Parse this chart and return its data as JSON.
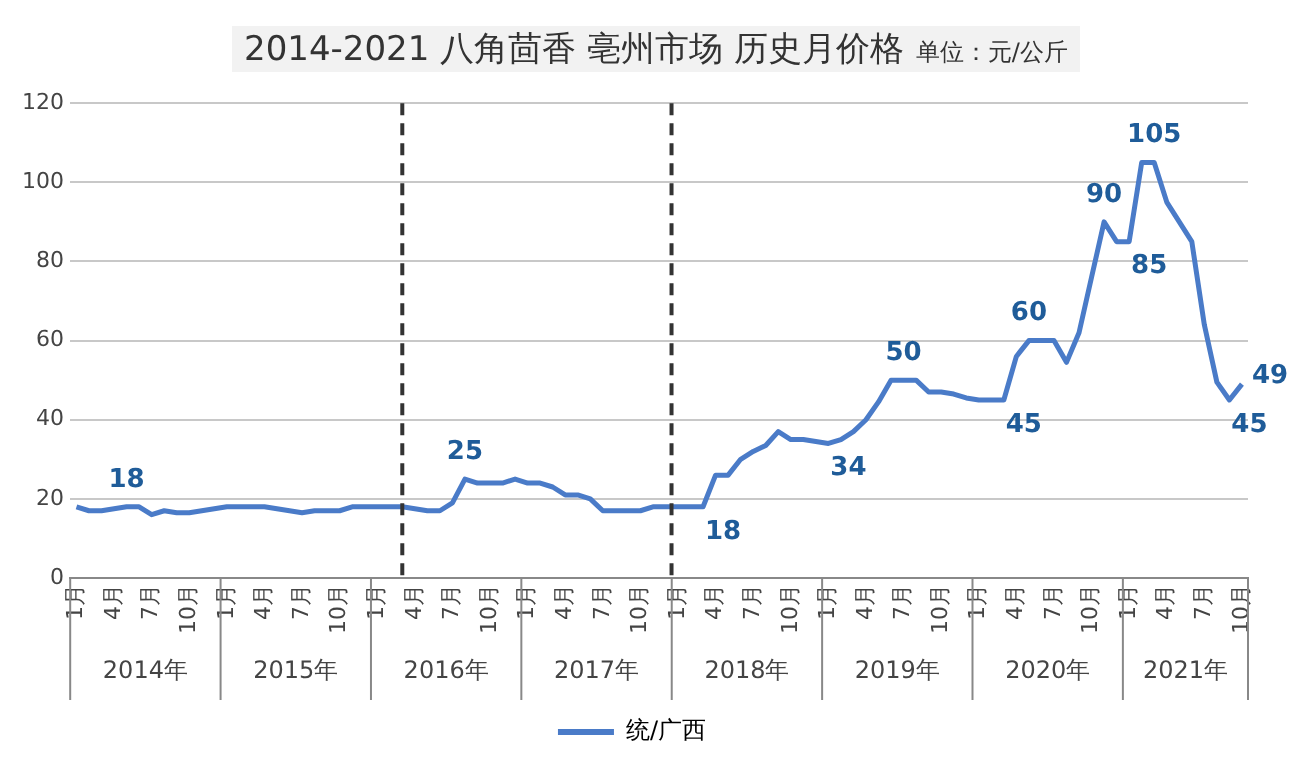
{
  "chart_data": {
    "type": "line",
    "title": "2014-2021 八角茴香 亳州市场 历史月价格",
    "subtitle": "单位：元/公斤",
    "x": [
      "2014-01",
      "2014-02",
      "2014-03",
      "2014-04",
      "2014-05",
      "2014-06",
      "2014-07",
      "2014-08",
      "2014-09",
      "2014-10",
      "2014-11",
      "2014-12",
      "2015-01",
      "2015-02",
      "2015-03",
      "2015-04",
      "2015-05",
      "2015-06",
      "2015-07",
      "2015-08",
      "2015-09",
      "2015-10",
      "2015-11",
      "2015-12",
      "2016-01",
      "2016-02",
      "2016-03",
      "2016-04",
      "2016-05",
      "2016-06",
      "2016-07",
      "2016-08",
      "2016-09",
      "2016-10",
      "2016-11",
      "2016-12",
      "2017-01",
      "2017-02",
      "2017-03",
      "2017-04",
      "2017-05",
      "2017-06",
      "2017-07",
      "2017-08",
      "2017-09",
      "2017-10",
      "2017-11",
      "2017-12",
      "2018-01",
      "2018-02",
      "2018-03",
      "2018-04",
      "2018-05",
      "2018-06",
      "2018-07",
      "2018-08",
      "2018-09",
      "2018-10",
      "2018-11",
      "2018-12",
      "2019-01",
      "2019-02",
      "2019-03",
      "2019-04",
      "2019-05",
      "2019-06",
      "2019-07",
      "2019-08",
      "2019-09",
      "2019-10",
      "2019-11",
      "2019-12",
      "2020-01",
      "2020-02",
      "2020-03",
      "2020-04",
      "2020-05",
      "2020-06",
      "2020-07",
      "2020-08",
      "2020-09",
      "2020-10",
      "2020-11",
      "2020-12",
      "2021-01",
      "2021-02",
      "2021-03",
      "2021-04",
      "2021-05",
      "2021-06",
      "2021-07",
      "2021-08",
      "2021-09",
      "2021-10"
    ],
    "series": [
      {
        "name": "统/广西",
        "color": "#4a7bc8",
        "values": [
          18,
          17,
          17,
          17.5,
          18,
          18,
          16,
          17,
          16.5,
          16.5,
          17,
          17.5,
          18,
          18,
          18,
          18,
          17.5,
          17,
          16.5,
          17,
          17,
          17,
          18,
          18,
          18,
          18,
          18,
          17.5,
          17,
          17,
          19,
          25,
          24,
          24,
          24,
          25,
          24,
          24,
          23,
          21,
          21,
          20,
          17,
          17,
          17,
          17,
          18,
          18,
          18,
          18,
          18,
          26,
          26,
          30,
          32,
          33.5,
          37,
          35,
          35,
          34.5,
          34,
          35,
          37,
          40,
          44.5,
          50,
          50,
          50,
          47,
          47,
          46.5,
          45.5,
          45,
          45,
          45,
          56,
          60,
          60,
          60,
          54.5,
          62,
          76,
          90,
          85,
          85,
          105,
          105,
          95,
          90,
          85,
          64,
          49.5,
          45,
          49
        ],
        "value_labels": [
          null,
          null,
          null,
          null,
          "18",
          null,
          null,
          null,
          null,
          null,
          null,
          null,
          null,
          null,
          null,
          null,
          null,
          null,
          null,
          null,
          null,
          null,
          null,
          null,
          null,
          null,
          null,
          null,
          null,
          null,
          null,
          "25",
          null,
          null,
          null,
          null,
          null,
          null,
          null,
          null,
          null,
          null,
          null,
          null,
          null,
          null,
          null,
          null,
          null,
          null,
          "18",
          null,
          null,
          null,
          null,
          null,
          null,
          null,
          null,
          null,
          "34",
          null,
          null,
          null,
          null,
          null,
          "50",
          null,
          null,
          null,
          null,
          null,
          null,
          null,
          "45",
          null,
          "60",
          null,
          null,
          null,
          null,
          null,
          "90",
          null,
          "85",
          null,
          "105",
          null,
          null,
          null,
          null,
          null,
          "45",
          "49"
        ]
      }
    ],
    "xlim": [
      "2013-12-16",
      "2021-10-16"
    ],
    "xticks": [
      {
        "value": "2014-01",
        "label": "1月"
      },
      {
        "value": "2014-04",
        "label": "4月"
      },
      {
        "value": "2014-07",
        "label": "7月"
      },
      {
        "value": "2014-10",
        "label": "10月"
      },
      {
        "value": "2015-01",
        "label": "1月"
      },
      {
        "value": "2015-04",
        "label": "4月"
      },
      {
        "value": "2015-07",
        "label": "7月"
      },
      {
        "value": "2015-10",
        "label": "10月"
      },
      {
        "value": "2016-01",
        "label": "1月"
      },
      {
        "value": "2016-04",
        "label": "4月"
      },
      {
        "value": "2016-07",
        "label": "7月"
      },
      {
        "value": "2016-10",
        "label": "10月"
      },
      {
        "value": "2017-01",
        "label": "1月"
      },
      {
        "value": "2017-04",
        "label": "4月"
      },
      {
        "value": "2017-07",
        "label": "7月"
      },
      {
        "value": "2017-10",
        "label": "10月"
      },
      {
        "value": "2018-01",
        "label": "1月"
      },
      {
        "value": "2018-04",
        "label": "4月"
      },
      {
        "value": "2018-07",
        "label": "7月"
      },
      {
        "value": "2018-10",
        "label": "10月"
      },
      {
        "value": "2019-01",
        "label": "1月"
      },
      {
        "value": "2019-04",
        "label": "4月"
      },
      {
        "value": "2019-07",
        "label": "7月"
      },
      {
        "value": "2019-10",
        "label": "10月"
      },
      {
        "value": "2020-01",
        "label": "1月"
      },
      {
        "value": "2020-04",
        "label": "4月"
      },
      {
        "value": "2020-07",
        "label": "7月"
      },
      {
        "value": "2020-10",
        "label": "10月"
      },
      {
        "value": "2021-01",
        "label": "1月"
      },
      {
        "value": "2021-04",
        "label": "4月"
      },
      {
        "value": "2021-07",
        "label": "7月"
      },
      {
        "value": "2021-10",
        "label": "10月"
      }
    ],
    "ylim": [
      0,
      120
    ],
    "yticks": [
      0,
      20,
      40,
      60,
      80,
      100,
      120
    ],
    "ref_lines": [
      {
        "axis": "x",
        "value": "2016-03",
        "line_style": "dashed",
        "color": "#333333"
      },
      {
        "axis": "x",
        "value": "2017-12-16",
        "line_style": "dashed",
        "color": "#333333"
      }
    ],
    "annotations": [
      "2014年",
      "2015年",
      "2016年",
      "2017年",
      "2018年",
      "2019年",
      "2020年",
      "2021年"
    ],
    "grid": "y",
    "legend": "bottom",
    "marker": "none",
    "line_style": "solid"
  }
}
